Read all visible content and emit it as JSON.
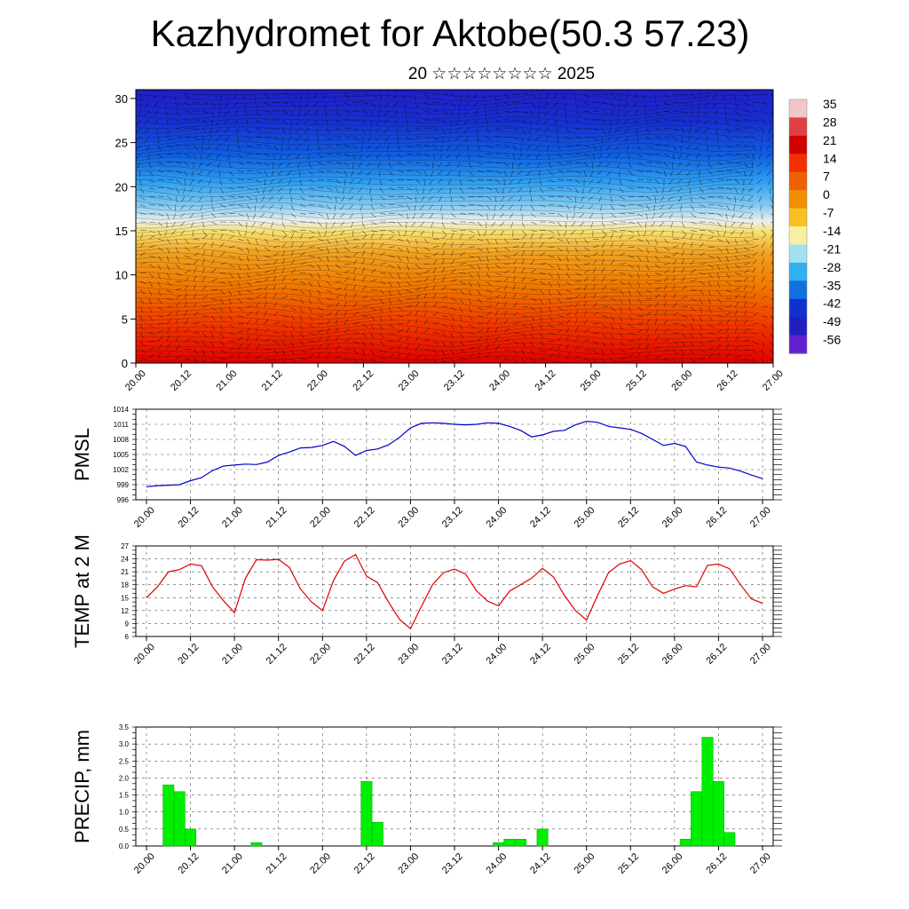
{
  "title": "Kazhydromet for Aktobe(50.3 57.23)",
  "subtitle": "20 ☆☆☆☆☆☆☆☆ 2025",
  "time_labels": [
    "20.00",
    "20.12",
    "21.00",
    "21.12",
    "22.00",
    "22.12",
    "23.00",
    "23.12",
    "24.00",
    "24.12",
    "25.00",
    "25.12",
    "26.00",
    "26.12",
    "27.00"
  ],
  "chart_data": [
    {
      "type": "heatmap",
      "xlabel": "",
      "ylabel": "",
      "x_ticks": [
        "20.00",
        "20.12",
        "21.00",
        "21.12",
        "22.00",
        "22.12",
        "23.00",
        "23.12",
        "24.00",
        "24.12",
        "25.00",
        "25.12",
        "26.00",
        "26.12",
        "27.00"
      ],
      "y_ticks": [
        0,
        5,
        10,
        15,
        20,
        25,
        30
      ],
      "ylim": [
        0,
        31
      ],
      "colorbar_labels": [
        "35",
        "28",
        "21",
        "14",
        "7",
        "0",
        "-7",
        "-14",
        "-21",
        "-28",
        "-35",
        "-42",
        "-49",
        "-56"
      ],
      "colorbar_values": [
        35,
        28,
        21,
        14,
        7,
        0,
        -7,
        -14,
        -21,
        -28,
        -35,
        -42,
        -49,
        -56
      ],
      "colors": [
        "#f0c8c8",
        "#e04040",
        "#d00000",
        "#f03000",
        "#f06000",
        "#f09000",
        "#f8c020",
        "#f8f0a0",
        "#a0e0f0",
        "#30b0f0",
        "#1070e0",
        "#1030d0",
        "#2020c0",
        "#6020d0"
      ],
      "profile_levels": [
        0,
        5,
        10,
        15,
        20,
        25,
        30
      ],
      "profile_values": [
        33,
        24,
        12,
        -2,
        -30,
        -45,
        -52
      ]
    },
    {
      "type": "line",
      "ylabel": "PMSL",
      "ylim": [
        996,
        1014
      ],
      "y_ticks": [
        996,
        999,
        1002,
        1005,
        1008,
        1011,
        1014
      ],
      "color": "#0000cc",
      "x": [
        0,
        1,
        2,
        3,
        4,
        5,
        6,
        7,
        8,
        9,
        10,
        11,
        12,
        13,
        14,
        15,
        16,
        17,
        18,
        19,
        20,
        21,
        22,
        23,
        24,
        25,
        26,
        27,
        28,
        29,
        30,
        31,
        32,
        33,
        34,
        35,
        36,
        37,
        38,
        39,
        40,
        41,
        42,
        43,
        44,
        45,
        46,
        47,
        48,
        49,
        50,
        51,
        52,
        53,
        54,
        55,
        56
      ],
      "values": [
        998.6,
        998.8,
        998.9,
        999.0,
        999.8,
        1000.4,
        1001.8,
        1002.7,
        1002.9,
        1003.1,
        1003.0,
        1003.5,
        1004.8,
        1005.5,
        1006.3,
        1006.4,
        1006.8,
        1007.6,
        1006.6,
        1004.8,
        1005.8,
        1006.1,
        1006.9,
        1008.4,
        1010.3,
        1011.2,
        1011.3,
        1011.2,
        1011.0,
        1010.9,
        1011.0,
        1011.3,
        1011.2,
        1010.6,
        1009.8,
        1008.5,
        1008.9,
        1009.6,
        1009.8,
        1010.9,
        1011.6,
        1011.4,
        1010.6,
        1010.3,
        1010.0,
        1009.2,
        1008.0,
        1006.8,
        1007.2,
        1006.6,
        1003.5,
        1002.9,
        1002.5,
        1002.3,
        1001.7,
        1000.9,
        1000.2
      ]
    },
    {
      "type": "line",
      "ylabel": "TEMP at 2 M",
      "ylim": [
        6,
        27
      ],
      "y_ticks": [
        6,
        9,
        12,
        15,
        18,
        21,
        24,
        27
      ],
      "color": "#dd0000",
      "x": [
        0,
        1,
        2,
        3,
        4,
        5,
        6,
        7,
        8,
        9,
        10,
        11,
        12,
        13,
        14,
        15,
        16,
        17,
        18,
        19,
        20,
        21,
        22,
        23,
        24,
        25,
        26,
        27,
        28,
        29,
        30,
        31,
        32,
        33,
        34,
        35,
        36,
        37,
        38,
        39,
        40,
        41,
        42,
        43,
        44,
        45,
        46,
        47,
        48,
        49,
        50,
        51,
        52,
        53,
        54,
        55,
        56
      ],
      "values": [
        15.0,
        17.5,
        21.0,
        21.5,
        22.8,
        22.4,
        17.5,
        14.3,
        11.5,
        19.5,
        23.8,
        23.7,
        23.9,
        22.0,
        17.0,
        14.0,
        12.0,
        19.0,
        23.5,
        25.0,
        20.0,
        18.5,
        14.0,
        10.0,
        7.8,
        13.0,
        18.0,
        20.8,
        21.6,
        20.5,
        16.6,
        14.2,
        13.1,
        16.5,
        18.0,
        19.5,
        21.8,
        19.8,
        15.5,
        12.0,
        9.8,
        15.5,
        20.8,
        22.8,
        23.6,
        21.5,
        17.5,
        16.0,
        17.0,
        17.8,
        17.5,
        22.5,
        22.8,
        21.7,
        18.0,
        14.7,
        13.7
      ]
    },
    {
      "type": "bar",
      "ylabel": "PRECIP, mm",
      "ylim": [
        0,
        3.5
      ],
      "y_ticks": [
        "0.0",
        "0.5",
        "1.0",
        "1.5",
        "2.0",
        "2.5",
        "3.0",
        "3.5"
      ],
      "color": "#00ee00",
      "x": [
        2,
        3,
        4,
        10,
        20,
        21,
        32,
        33,
        34,
        36,
        49,
        50,
        51,
        52,
        53
      ],
      "values": [
        1.8,
        1.6,
        0.5,
        0.1,
        1.9,
        0.7,
        0.1,
        0.2,
        0.2,
        0.5,
        0.2,
        1.6,
        3.2,
        1.9,
        0.4
      ]
    }
  ]
}
